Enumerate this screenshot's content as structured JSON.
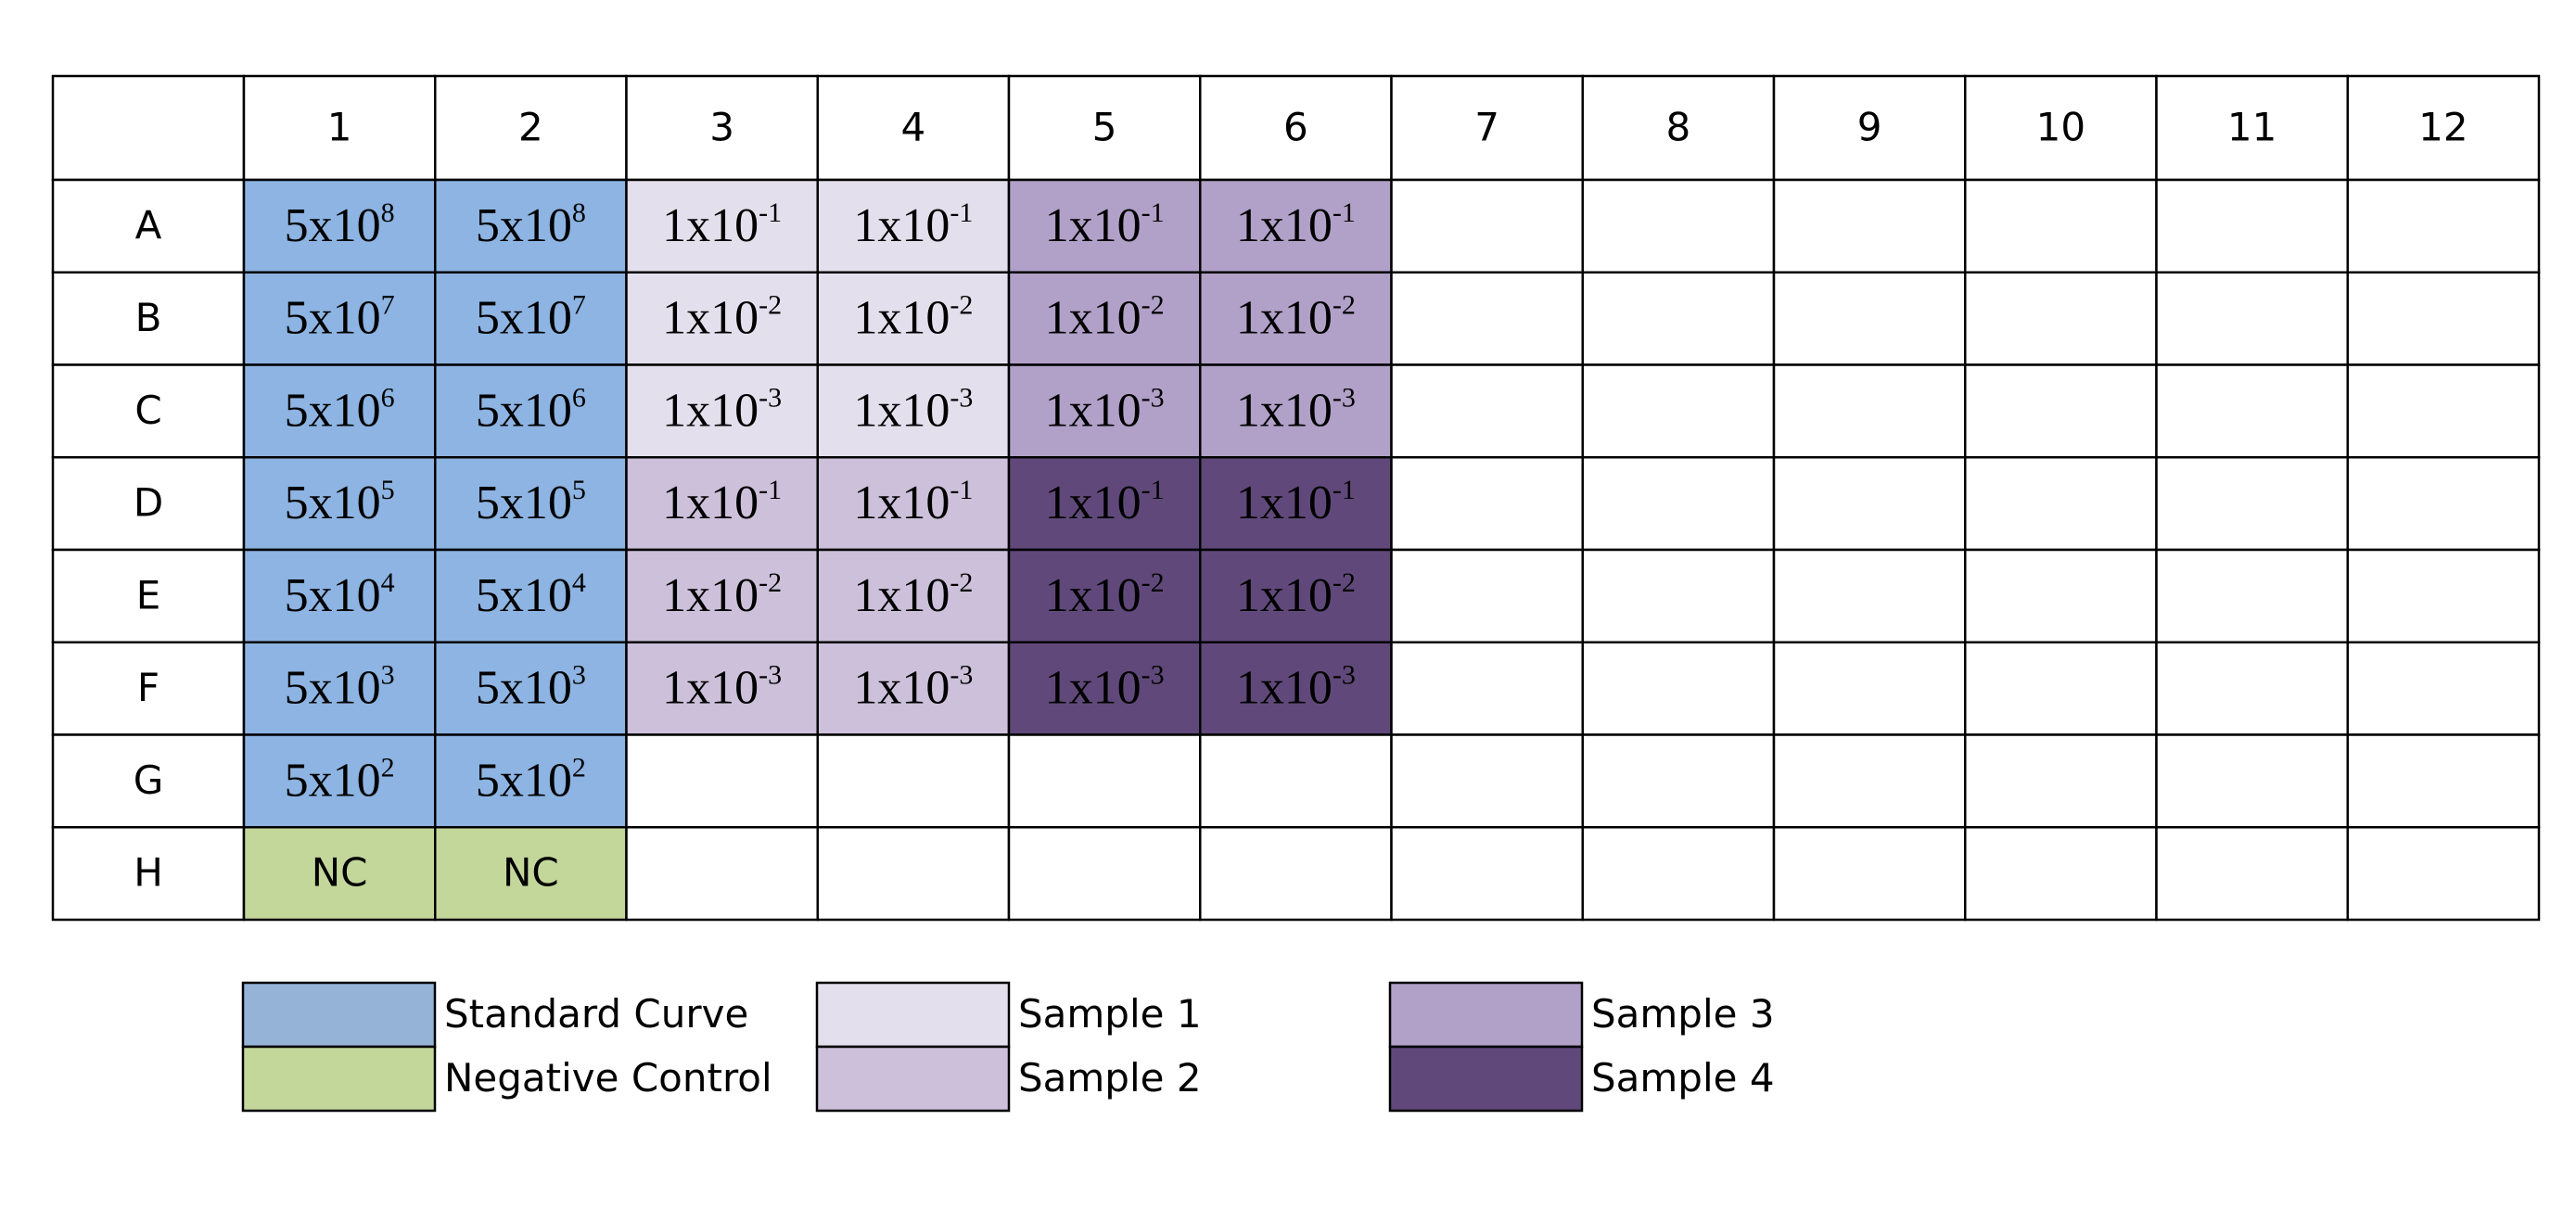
{
  "table": {
    "columns": [
      "1",
      "2",
      "3",
      "4",
      "5",
      "6",
      "7",
      "8",
      "9",
      "10",
      "11",
      "12"
    ],
    "rows": [
      {
        "label": "A",
        "cells": [
          {
            "base": "5x10",
            "exp": "8",
            "fill": "#8db4e2"
          },
          {
            "base": "5x10",
            "exp": "8",
            "fill": "#8db4e2"
          },
          {
            "base": "1x10",
            "exp": "-1",
            "fill": "#e4dfec"
          },
          {
            "base": "1x10",
            "exp": "-1",
            "fill": "#e4dfec"
          },
          {
            "base": "1x10",
            "exp": "-1",
            "fill": "#b1a0c7"
          },
          {
            "base": "1x10",
            "exp": "-1",
            "fill": "#b1a0c7"
          },
          null,
          null,
          null,
          null,
          null,
          null
        ]
      },
      {
        "label": "B",
        "cells": [
          {
            "base": "5x10",
            "exp": "7",
            "fill": "#8db4e2"
          },
          {
            "base": "5x10",
            "exp": "7",
            "fill": "#8db4e2"
          },
          {
            "base": "1x10",
            "exp": "-2",
            "fill": "#e4dfec"
          },
          {
            "base": "1x10",
            "exp": "-2",
            "fill": "#e4dfec"
          },
          {
            "base": "1x10",
            "exp": "-2",
            "fill": "#b1a0c7"
          },
          {
            "base": "1x10",
            "exp": "-2",
            "fill": "#b1a0c7"
          },
          null,
          null,
          null,
          null,
          null,
          null
        ]
      },
      {
        "label": "C",
        "cells": [
          {
            "base": "5x10",
            "exp": "6",
            "fill": "#8db4e2"
          },
          {
            "base": "5x10",
            "exp": "6",
            "fill": "#8db4e2"
          },
          {
            "base": "1x10",
            "exp": "-3",
            "fill": "#e4dfec"
          },
          {
            "base": "1x10",
            "exp": "-3",
            "fill": "#e4dfec"
          },
          {
            "base": "1x10",
            "exp": "-3",
            "fill": "#b1a0c7"
          },
          {
            "base": "1x10",
            "exp": "-3",
            "fill": "#b1a0c7"
          },
          null,
          null,
          null,
          null,
          null,
          null
        ]
      },
      {
        "label": "D",
        "cells": [
          {
            "base": "5x10",
            "exp": "5",
            "fill": "#8db4e2"
          },
          {
            "base": "5x10",
            "exp": "5",
            "fill": "#8db4e2"
          },
          {
            "base": "1x10",
            "exp": "-1",
            "fill": "#ccc0da"
          },
          {
            "base": "1x10",
            "exp": "-1",
            "fill": "#ccc0da"
          },
          {
            "base": "1x10",
            "exp": "-1",
            "fill": "#60497a"
          },
          {
            "base": "1x10",
            "exp": "-1",
            "fill": "#60497a"
          },
          null,
          null,
          null,
          null,
          null,
          null
        ]
      },
      {
        "label": "E",
        "cells": [
          {
            "base": "5x10",
            "exp": "4",
            "fill": "#8db4e2"
          },
          {
            "base": "5x10",
            "exp": "4",
            "fill": "#8db4e2"
          },
          {
            "base": "1x10",
            "exp": "-2",
            "fill": "#ccc0da"
          },
          {
            "base": "1x10",
            "exp": "-2",
            "fill": "#ccc0da"
          },
          {
            "base": "1x10",
            "exp": "-2",
            "fill": "#60497a"
          },
          {
            "base": "1x10",
            "exp": "-2",
            "fill": "#60497a"
          },
          null,
          null,
          null,
          null,
          null,
          null
        ]
      },
      {
        "label": "F",
        "cells": [
          {
            "base": "5x10",
            "exp": "3",
            "fill": "#8db4e2"
          },
          {
            "base": "5x10",
            "exp": "3",
            "fill": "#8db4e2"
          },
          {
            "base": "1x10",
            "exp": "-3",
            "fill": "#ccc0da"
          },
          {
            "base": "1x10",
            "exp": "-3",
            "fill": "#ccc0da"
          },
          {
            "base": "1x10",
            "exp": "-3",
            "fill": "#60497a"
          },
          {
            "base": "1x10",
            "exp": "-3",
            "fill": "#60497a"
          },
          null,
          null,
          null,
          null,
          null,
          null
        ]
      },
      {
        "label": "G",
        "cells": [
          {
            "base": "5x10",
            "exp": "2",
            "fill": "#8db4e2"
          },
          {
            "base": "5x10",
            "exp": "2",
            "fill": "#8db4e2"
          },
          null,
          null,
          null,
          null,
          null,
          null,
          null,
          null,
          null,
          null
        ]
      },
      {
        "label": "H",
        "cells": [
          {
            "text": "NC",
            "fill": "#c4d79b"
          },
          {
            "text": "NC",
            "fill": "#c4d79b"
          },
          null,
          null,
          null,
          null,
          null,
          null,
          null,
          null,
          null,
          null
        ]
      }
    ]
  },
  "legend": [
    {
      "label": "Standard Curve",
      "color": "#95b3d7"
    },
    {
      "label": "Negative Control",
      "color": "#c4d79b"
    },
    {
      "label": "Sample 1",
      "color": "#e4dfec"
    },
    {
      "label": "Sample 2",
      "color": "#ccc0da"
    },
    {
      "label": "Sample 3",
      "color": "#b1a0c7"
    },
    {
      "label": "Sample 4",
      "color": "#60497a"
    }
  ]
}
